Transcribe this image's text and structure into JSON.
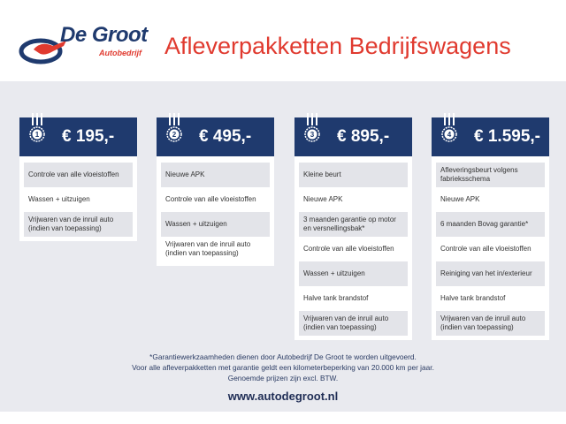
{
  "logo": {
    "name": "De Groot",
    "sub": "Autobedrijf"
  },
  "title": "Afleverpakketten Bedrijfswagens",
  "packages": [
    {
      "number": "1",
      "price": "€ 195,-",
      "items": [
        "Controle van alle vloeistoffen",
        "Wassen + uitzuigen",
        "Vrijwaren van de inruil auto (indien van toepassing)"
      ]
    },
    {
      "number": "2",
      "price": "€ 495,-",
      "items": [
        "Nieuwe APK",
        "Controle van alle vloeistoffen",
        "Wassen + uitzuigen",
        "Vrijwaren van de inruil auto (indien van toepassing)"
      ]
    },
    {
      "number": "3",
      "price": "€ 895,-",
      "items": [
        "Kleine beurt",
        "Nieuwe APK",
        "3 maanden garantie op motor en versnellingsbak*",
        "Controle van alle vloeistoffen",
        "Wassen + uitzuigen",
        "Halve tank brandstof",
        "Vrijwaren van de inruil auto (indien van toepassing)"
      ]
    },
    {
      "number": "4",
      "price": "€ 1.595,-",
      "items": [
        "Afleveringsbeurt volgens fabrieksschema",
        "Nieuwe APK",
        "6 maanden Bovag garantie*",
        "Controle van alle vloeistoffen",
        "Reiniging van het in/exterieur",
        "Halve tank brandstof",
        "Vrijwaren van de inruil auto (indien van toepassing)"
      ]
    }
  ],
  "footer": {
    "lines": [
      "*Garantiewerkzaamheden dienen door Autobedrijf De Groot te worden uitgevoerd.",
      "Voor alle afleverpakketten met garantie geldt een kilometerbeperking van 20.000 km per jaar.",
      "Genoemde prijzen zijn excl. BTW."
    ],
    "url": "www.autodegroot.nl"
  },
  "colors": {
    "navy": "#1f3a6e",
    "red": "#e03a2f",
    "band": "#e9eaef"
  }
}
